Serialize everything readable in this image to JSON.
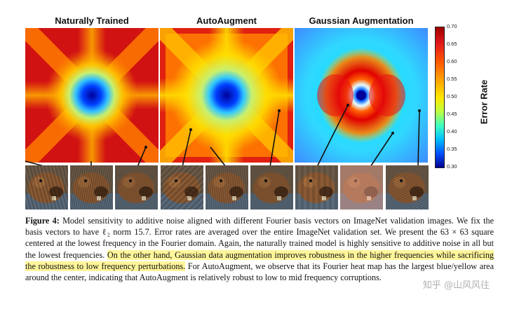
{
  "panels": [
    {
      "title": "Naturally Trained"
    },
    {
      "title": "AutoAugment"
    },
    {
      "title": "Gaussian Augmentation"
    }
  ],
  "colorbar": {
    "label": "Error Rate",
    "ticks": [
      "0.70",
      "0.65",
      "0.60",
      "0.55",
      "0.50",
      "0.45",
      "0.40",
      "0.35",
      "0.30"
    ],
    "min": 0.3,
    "max": 0.7
  },
  "caption": {
    "label": "Figure 4:",
    "text_1": " Model sensitivity to additive noise aligned with different Fourier basis vectors on ImageNet validation images. We fix the basis vectors to have ℓ₂ norm 15.7. Error rates are averaged over the entire ImageNet validation set. We present the 63 × 63 square centered at the lowest frequency in the Fourier domain. Again, the naturally trained model is highly sensitive to additive noise in all but the lowest frequencies. ",
    "highlight": "On the other hand, Gaussian data augmentation improves robustness in the higher frequencies while sacrificing the robustness to low frequency perturbations.",
    "text_2": " For AutoAugment, we observe that its Fourier heat map has the largest blue/yellow area around the center, indicating that AutoAugment is relatively robust to low to mid frequency corruptions."
  },
  "watermark": "知乎 @山风风往",
  "colors": {
    "highlight": "#fff59a",
    "heat_high": "#b00000",
    "heat_low": "#00008f"
  }
}
